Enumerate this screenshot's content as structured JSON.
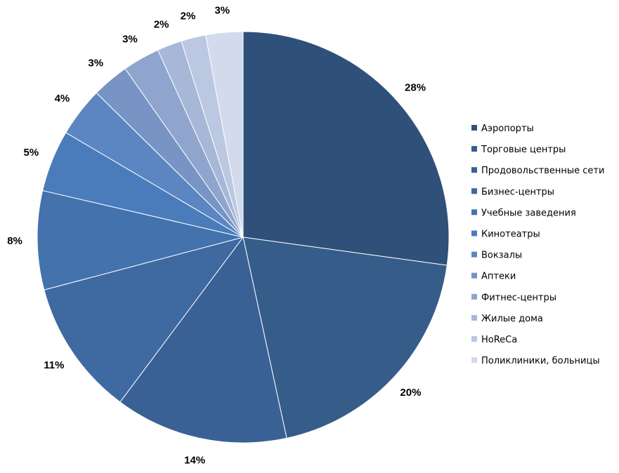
{
  "chart_data": {
    "type": "pie",
    "categories": [
      "Аэропорты",
      "Торговые центры",
      "Продовольственные сети",
      "Бизнес-центры",
      "Учебные заведения",
      "Кинотеатры",
      "Вокзалы",
      "Аптеки",
      "Фитнес-центры",
      "Жилые дома",
      "HoReCa",
      "Поликлиники, больницы"
    ],
    "values": [
      28,
      20,
      14,
      11,
      8,
      5,
      4,
      3,
      3,
      2,
      2,
      3
    ],
    "colors": [
      "#2f5078",
      "#365c89",
      "#3a6195",
      "#3e69a1",
      "#4372ad",
      "#4a7cbc",
      "#5c86c1",
      "#7794c5",
      "#8fa5cd",
      "#a6b7d7",
      "#bcc8e1",
      "#d2daec"
    ],
    "legend": "right"
  }
}
